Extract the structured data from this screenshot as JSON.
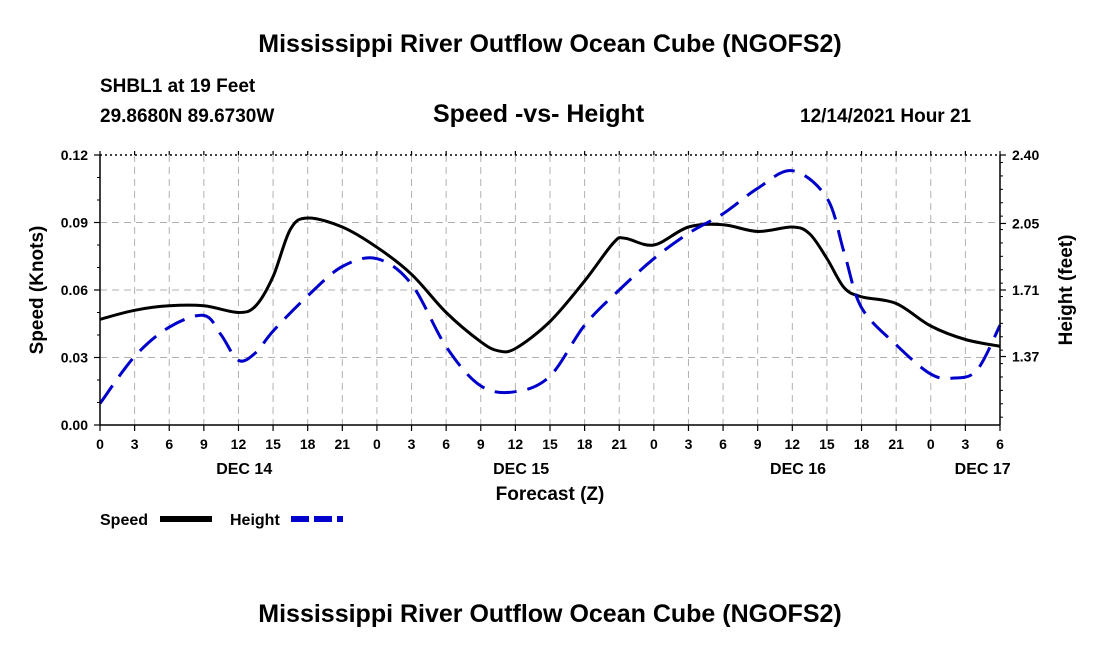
{
  "header": {
    "title": "Mississippi River Outflow Ocean Cube (NGOFS2)",
    "station": "SHBL1 at 19 Feet",
    "coords": "29.8680N  89.6730W",
    "subtitle": "Speed -vs- Height",
    "timestamp": "12/14/2021 Hour 21"
  },
  "footer": {
    "title": "Mississippi River Outflow Ocean Cube (NGOFS2)"
  },
  "chart_data": {
    "type": "line",
    "title": "Speed -vs- Height",
    "xlabel": "Forecast (Z)",
    "ylabel": "Speed (Knots)",
    "y2label": "Height (feet)",
    "xlim": [
      0,
      78
    ],
    "ylim": [
      0,
      0.12
    ],
    "y2lim": [
      1.02,
      2.4
    ],
    "grid": true,
    "legend_position": "bottom-left",
    "x_ticks": [
      {
        "x": 0,
        "label": "0"
      },
      {
        "x": 3,
        "label": "3"
      },
      {
        "x": 6,
        "label": "6"
      },
      {
        "x": 9,
        "label": "9"
      },
      {
        "x": 12,
        "label": "12"
      },
      {
        "x": 15,
        "label": "15"
      },
      {
        "x": 18,
        "label": "18"
      },
      {
        "x": 21,
        "label": "21"
      },
      {
        "x": 24,
        "label": "0"
      },
      {
        "x": 27,
        "label": "3"
      },
      {
        "x": 30,
        "label": "6"
      },
      {
        "x": 33,
        "label": "9"
      },
      {
        "x": 36,
        "label": "12"
      },
      {
        "x": 39,
        "label": "15"
      },
      {
        "x": 42,
        "label": "18"
      },
      {
        "x": 45,
        "label": "21"
      },
      {
        "x": 48,
        "label": "0"
      },
      {
        "x": 51,
        "label": "3"
      },
      {
        "x": 54,
        "label": "6"
      },
      {
        "x": 57,
        "label": "9"
      },
      {
        "x": 60,
        "label": "12"
      },
      {
        "x": 63,
        "label": "15"
      },
      {
        "x": 66,
        "label": "18"
      },
      {
        "x": 69,
        "label": "21"
      },
      {
        "x": 72,
        "label": "0"
      },
      {
        "x": 75,
        "label": "3"
      },
      {
        "x": 78,
        "label": "6"
      }
    ],
    "day_labels": [
      {
        "x": 12.5,
        "label": "DEC 14"
      },
      {
        "x": 36.5,
        "label": "DEC 15"
      },
      {
        "x": 60.5,
        "label": "DEC 16"
      },
      {
        "x": 76.5,
        "label": "DEC 17"
      }
    ],
    "y_ticks": [
      {
        "v": 0.0,
        "label": "0.00"
      },
      {
        "v": 0.03,
        "label": "0.03"
      },
      {
        "v": 0.06,
        "label": "0.06"
      },
      {
        "v": 0.09,
        "label": "0.09"
      },
      {
        "v": 0.12,
        "label": "0.12"
      }
    ],
    "y2_ticks": [
      {
        "v": 1.37,
        "label": "1.37"
      },
      {
        "v": 1.71,
        "label": "1.71"
      },
      {
        "v": 2.05,
        "label": "2.05"
      },
      {
        "v": 2.4,
        "label": "2.40"
      }
    ],
    "series": [
      {
        "name": "Speed",
        "axis": "left",
        "color": "#000000",
        "dash": "solid",
        "points": [
          [
            0,
            0.047
          ],
          [
            3,
            0.051
          ],
          [
            6,
            0.053
          ],
          [
            9,
            0.053
          ],
          [
            12,
            0.05
          ],
          [
            13.5,
            0.053
          ],
          [
            15,
            0.066
          ],
          [
            16.5,
            0.087
          ],
          [
            18,
            0.092
          ],
          [
            21,
            0.088
          ],
          [
            24,
            0.079
          ],
          [
            27,
            0.067
          ],
          [
            30,
            0.05
          ],
          [
            33,
            0.037
          ],
          [
            34.5,
            0.033
          ],
          [
            36,
            0.034
          ],
          [
            39,
            0.046
          ],
          [
            42,
            0.064
          ],
          [
            44.5,
            0.081
          ],
          [
            45.5,
            0.083
          ],
          [
            48,
            0.08
          ],
          [
            51,
            0.088
          ],
          [
            54,
            0.089
          ],
          [
            57,
            0.086
          ],
          [
            60,
            0.088
          ],
          [
            61.5,
            0.085
          ],
          [
            63,
            0.074
          ],
          [
            64.5,
            0.061
          ],
          [
            66,
            0.057
          ],
          [
            69,
            0.054
          ],
          [
            72,
            0.044
          ],
          [
            75,
            0.038
          ],
          [
            78,
            0.035
          ]
        ]
      },
      {
        "name": "Height",
        "axis": "right",
        "color": "#0000cc",
        "dash": "dashed",
        "points": [
          [
            0,
            1.13
          ],
          [
            3,
            1.37
          ],
          [
            6,
            1.52
          ],
          [
            9,
            1.58
          ],
          [
            10.5,
            1.48
          ],
          [
            12,
            1.35
          ],
          [
            13.5,
            1.39
          ],
          [
            15,
            1.5
          ],
          [
            18,
            1.68
          ],
          [
            21,
            1.83
          ],
          [
            24,
            1.87
          ],
          [
            27,
            1.74
          ],
          [
            30,
            1.42
          ],
          [
            33,
            1.22
          ],
          [
            36,
            1.19
          ],
          [
            39,
            1.27
          ],
          [
            42,
            1.53
          ],
          [
            45,
            1.71
          ],
          [
            48,
            1.87
          ],
          [
            51,
            2.0
          ],
          [
            54,
            2.1
          ],
          [
            57,
            2.23
          ],
          [
            60,
            2.32
          ],
          [
            63,
            2.18
          ],
          [
            64.5,
            1.9
          ],
          [
            66,
            1.62
          ],
          [
            69,
            1.43
          ],
          [
            72,
            1.28
          ],
          [
            74,
            1.26
          ],
          [
            76,
            1.3
          ],
          [
            78,
            1.53
          ]
        ]
      }
    ]
  }
}
